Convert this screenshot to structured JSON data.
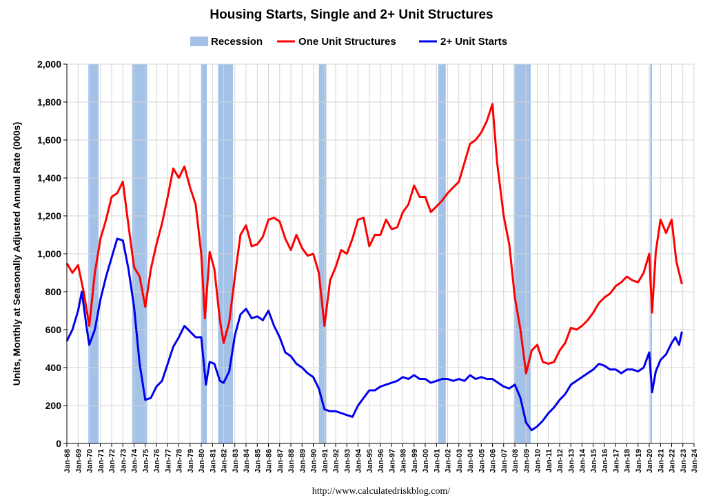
{
  "chart_data": {
    "type": "line",
    "title": "Housing Starts, Single and 2+ Unit Structures",
    "ylabel": "Units, Monthly at Seasonally Adjusted Annual Rate (000s)",
    "xlabel": "",
    "source": "http://www.calculatedriskblog.com/",
    "ylim": [
      0,
      2000
    ],
    "yticks": [
      0,
      200,
      400,
      600,
      800,
      1000,
      1200,
      1400,
      1600,
      1800,
      2000
    ],
    "ytick_labels": [
      "0",
      "200",
      "400",
      "600",
      "800",
      "1,000",
      "1,200",
      "1,400",
      "1,600",
      "1,800",
      "2,000"
    ],
    "xlim": [
      "Jan-68",
      "Jan-24"
    ],
    "xtick_labels": [
      "Jan-68",
      "Jan-69",
      "Jan-70",
      "Jan-71",
      "Jan-72",
      "Jan-73",
      "Jan-74",
      "Jan-75",
      "Jan-76",
      "Jan-77",
      "Jan-78",
      "Jan-79",
      "Jan-80",
      "Jan-81",
      "Jan-82",
      "Jan-83",
      "Jan-84",
      "Jan-85",
      "Jan-86",
      "Jan-87",
      "Jan-88",
      "Jan-89",
      "Jan-90",
      "Jan-91",
      "Jan-92",
      "Jan-93",
      "Jan-94",
      "Jan-95",
      "Jan-96",
      "Jan-97",
      "Jan-98",
      "Jan-99",
      "Jan-00",
      "Jan-01",
      "Jan-02",
      "Jan-03",
      "Jan-04",
      "Jan-05",
      "Jan-06",
      "Jan-07",
      "Jan-08",
      "Jan-09",
      "Jan-10",
      "Jan-11",
      "Jan-12",
      "Jan-13",
      "Jan-14",
      "Jan-15",
      "Jan-16",
      "Jan-17",
      "Jan-18",
      "Jan-19",
      "Jan-20",
      "Jan-21",
      "Jan-22",
      "Jan-23",
      "Jan-24"
    ],
    "grid": true,
    "legend_position": "top",
    "legend": [
      {
        "name": "Recession",
        "color": "#a4c2e8",
        "kind": "box"
      },
      {
        "name": "One Unit Structures",
        "color": "#ff0000",
        "kind": "line"
      },
      {
        "name": "2+ Unit Starts",
        "color": "#0000ee",
        "kind": "line"
      }
    ],
    "recessions": [
      {
        "start": "1969-12",
        "end": "1970-11"
      },
      {
        "start": "1973-11",
        "end": "1975-03"
      },
      {
        "start": "1980-01",
        "end": "1980-07"
      },
      {
        "start": "1981-07",
        "end": "1982-11"
      },
      {
        "start": "1990-07",
        "end": "1991-03"
      },
      {
        "start": "2001-03",
        "end": "2001-11"
      },
      {
        "start": "2007-12",
        "end": "2009-06"
      },
      {
        "start": "2020-02",
        "end": "2020-04"
      }
    ],
    "series": [
      {
        "name": "One Unit Structures",
        "color": "#ff0000",
        "points": [
          [
            "1968-01",
            950
          ],
          [
            "1968-07",
            900
          ],
          [
            "1969-01",
            940
          ],
          [
            "1969-07",
            800
          ],
          [
            "1970-01",
            620
          ],
          [
            "1970-07",
            900
          ],
          [
            "1971-01",
            1080
          ],
          [
            "1971-07",
            1180
          ],
          [
            "1972-01",
            1300
          ],
          [
            "1972-07",
            1320
          ],
          [
            "1973-01",
            1380
          ],
          [
            "1973-07",
            1150
          ],
          [
            "1974-01",
            930
          ],
          [
            "1974-07",
            880
          ],
          [
            "1975-01",
            720
          ],
          [
            "1975-07",
            920
          ],
          [
            "1976-01",
            1050
          ],
          [
            "1976-07",
            1160
          ],
          [
            "1977-01",
            1300
          ],
          [
            "1977-07",
            1450
          ],
          [
            "1978-01",
            1400
          ],
          [
            "1978-07",
            1460
          ],
          [
            "1979-01",
            1350
          ],
          [
            "1979-07",
            1260
          ],
          [
            "1980-01",
            1000
          ],
          [
            "1980-05",
            660
          ],
          [
            "1980-10",
            1010
          ],
          [
            "1981-03",
            920
          ],
          [
            "1981-09",
            650
          ],
          [
            "1982-01",
            530
          ],
          [
            "1982-07",
            640
          ],
          [
            "1983-01",
            880
          ],
          [
            "1983-07",
            1100
          ],
          [
            "1984-01",
            1150
          ],
          [
            "1984-07",
            1040
          ],
          [
            "1985-01",
            1050
          ],
          [
            "1985-07",
            1090
          ],
          [
            "1986-01",
            1180
          ],
          [
            "1986-07",
            1190
          ],
          [
            "1987-01",
            1170
          ],
          [
            "1987-07",
            1080
          ],
          [
            "1988-01",
            1020
          ],
          [
            "1988-07",
            1100
          ],
          [
            "1989-01",
            1030
          ],
          [
            "1989-07",
            990
          ],
          [
            "1990-01",
            1000
          ],
          [
            "1990-07",
            900
          ],
          [
            "1991-01",
            620
          ],
          [
            "1991-07",
            860
          ],
          [
            "1992-01",
            930
          ],
          [
            "1992-07",
            1020
          ],
          [
            "1993-01",
            1000
          ],
          [
            "1993-07",
            1080
          ],
          [
            "1994-01",
            1180
          ],
          [
            "1994-07",
            1190
          ],
          [
            "1995-01",
            1040
          ],
          [
            "1995-07",
            1100
          ],
          [
            "1996-01",
            1100
          ],
          [
            "1996-07",
            1180
          ],
          [
            "1997-01",
            1130
          ],
          [
            "1997-07",
            1140
          ],
          [
            "1998-01",
            1220
          ],
          [
            "1998-07",
            1260
          ],
          [
            "1999-01",
            1360
          ],
          [
            "1999-07",
            1300
          ],
          [
            "2000-01",
            1300
          ],
          [
            "2000-07",
            1220
          ],
          [
            "2001-01",
            1250
          ],
          [
            "2001-07",
            1280
          ],
          [
            "2002-01",
            1320
          ],
          [
            "2002-07",
            1350
          ],
          [
            "2003-01",
            1380
          ],
          [
            "2003-07",
            1480
          ],
          [
            "2004-01",
            1580
          ],
          [
            "2004-07",
            1600
          ],
          [
            "2005-01",
            1640
          ],
          [
            "2005-07",
            1700
          ],
          [
            "2006-01",
            1790
          ],
          [
            "2006-06",
            1480
          ],
          [
            "2007-01",
            1200
          ],
          [
            "2007-07",
            1050
          ],
          [
            "2008-01",
            770
          ],
          [
            "2008-07",
            600
          ],
          [
            "2009-01",
            370
          ],
          [
            "2009-07",
            490
          ],
          [
            "2010-01",
            520
          ],
          [
            "2010-07",
            430
          ],
          [
            "2011-01",
            420
          ],
          [
            "2011-07",
            430
          ],
          [
            "2012-01",
            490
          ],
          [
            "2012-07",
            530
          ],
          [
            "2013-01",
            610
          ],
          [
            "2013-07",
            600
          ],
          [
            "2014-01",
            620
          ],
          [
            "2014-07",
            650
          ],
          [
            "2015-01",
            690
          ],
          [
            "2015-07",
            740
          ],
          [
            "2016-01",
            770
          ],
          [
            "2016-07",
            790
          ],
          [
            "2017-01",
            830
          ],
          [
            "2017-07",
            850
          ],
          [
            "2018-01",
            880
          ],
          [
            "2018-07",
            860
          ],
          [
            "2019-01",
            850
          ],
          [
            "2019-07",
            900
          ],
          [
            "2020-01",
            1000
          ],
          [
            "2020-04",
            690
          ],
          [
            "2020-08",
            1010
          ],
          [
            "2021-01",
            1180
          ],
          [
            "2021-07",
            1110
          ],
          [
            "2022-01",
            1180
          ],
          [
            "2022-06",
            960
          ],
          [
            "2022-12",
            840
          ]
        ]
      },
      {
        "name": "2+ Unit Starts",
        "color": "#0000ee",
        "points": [
          [
            "1968-01",
            540
          ],
          [
            "1968-07",
            600
          ],
          [
            "1969-01",
            700
          ],
          [
            "1969-05",
            800
          ],
          [
            "1969-10",
            620
          ],
          [
            "1970-01",
            520
          ],
          [
            "1970-07",
            600
          ],
          [
            "1971-01",
            760
          ],
          [
            "1971-07",
            880
          ],
          [
            "1972-01",
            980
          ],
          [
            "1972-07",
            1080
          ],
          [
            "1973-01",
            1070
          ],
          [
            "1973-07",
            920
          ],
          [
            "1974-01",
            720
          ],
          [
            "1974-07",
            420
          ],
          [
            "1975-01",
            230
          ],
          [
            "1975-07",
            240
          ],
          [
            "1976-01",
            300
          ],
          [
            "1976-07",
            330
          ],
          [
            "1977-01",
            420
          ],
          [
            "1977-07",
            510
          ],
          [
            "1978-01",
            560
          ],
          [
            "1978-07",
            620
          ],
          [
            "1979-01",
            590
          ],
          [
            "1979-07",
            560
          ],
          [
            "1980-01",
            560
          ],
          [
            "1980-06",
            310
          ],
          [
            "1980-10",
            430
          ],
          [
            "1981-03",
            420
          ],
          [
            "1981-09",
            330
          ],
          [
            "1982-01",
            320
          ],
          [
            "1982-07",
            380
          ],
          [
            "1983-01",
            570
          ],
          [
            "1983-07",
            680
          ],
          [
            "1984-01",
            710
          ],
          [
            "1984-07",
            660
          ],
          [
            "1985-01",
            670
          ],
          [
            "1985-07",
            650
          ],
          [
            "1986-01",
            700
          ],
          [
            "1986-07",
            620
          ],
          [
            "1987-01",
            560
          ],
          [
            "1987-07",
            480
          ],
          [
            "1988-01",
            460
          ],
          [
            "1988-07",
            420
          ],
          [
            "1989-01",
            400
          ],
          [
            "1989-07",
            370
          ],
          [
            "1990-01",
            350
          ],
          [
            "1990-07",
            290
          ],
          [
            "1991-01",
            180
          ],
          [
            "1991-07",
            170
          ],
          [
            "1992-01",
            170
          ],
          [
            "1992-07",
            160
          ],
          [
            "1993-01",
            150
          ],
          [
            "1993-07",
            140
          ],
          [
            "1994-01",
            200
          ],
          [
            "1994-07",
            240
          ],
          [
            "1995-01",
            280
          ],
          [
            "1995-07",
            280
          ],
          [
            "1996-01",
            300
          ],
          [
            "1996-07",
            310
          ],
          [
            "1997-01",
            320
          ],
          [
            "1997-07",
            330
          ],
          [
            "1998-01",
            350
          ],
          [
            "1998-07",
            340
          ],
          [
            "1999-01",
            360
          ],
          [
            "1999-07",
            340
          ],
          [
            "2000-01",
            340
          ],
          [
            "2000-07",
            320
          ],
          [
            "2001-01",
            330
          ],
          [
            "2001-07",
            340
          ],
          [
            "2002-01",
            340
          ],
          [
            "2002-07",
            330
          ],
          [
            "2003-01",
            340
          ],
          [
            "2003-07",
            330
          ],
          [
            "2004-01",
            360
          ],
          [
            "2004-07",
            340
          ],
          [
            "2005-01",
            350
          ],
          [
            "2005-07",
            340
          ],
          [
            "2006-01",
            340
          ],
          [
            "2006-07",
            320
          ],
          [
            "2007-01",
            300
          ],
          [
            "2007-07",
            290
          ],
          [
            "2008-01",
            310
          ],
          [
            "2008-07",
            240
          ],
          [
            "2009-01",
            110
          ],
          [
            "2009-07",
            70
          ],
          [
            "2010-01",
            90
          ],
          [
            "2010-07",
            120
          ],
          [
            "2011-01",
            160
          ],
          [
            "2011-07",
            190
          ],
          [
            "2012-01",
            230
          ],
          [
            "2012-07",
            260
          ],
          [
            "2013-01",
            310
          ],
          [
            "2013-07",
            330
          ],
          [
            "2014-01",
            350
          ],
          [
            "2014-07",
            370
          ],
          [
            "2015-01",
            390
          ],
          [
            "2015-07",
            420
          ],
          [
            "2016-01",
            410
          ],
          [
            "2016-07",
            390
          ],
          [
            "2017-01",
            390
          ],
          [
            "2017-07",
            370
          ],
          [
            "2018-01",
            390
          ],
          [
            "2018-07",
            390
          ],
          [
            "2019-01",
            380
          ],
          [
            "2019-07",
            400
          ],
          [
            "2020-01",
            480
          ],
          [
            "2020-04",
            270
          ],
          [
            "2020-08",
            380
          ],
          [
            "2021-01",
            440
          ],
          [
            "2021-07",
            470
          ],
          [
            "2022-01",
            530
          ],
          [
            "2022-05",
            560
          ],
          [
            "2022-09",
            520
          ],
          [
            "2022-12",
            590
          ]
        ]
      }
    ]
  }
}
